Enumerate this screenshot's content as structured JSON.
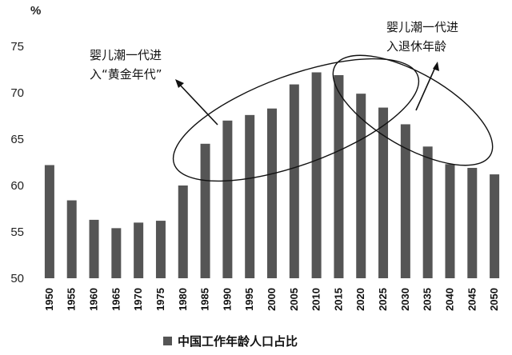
{
  "chart_data": {
    "type": "bar",
    "ylabel": "%",
    "ylim": [
      50,
      75
    ],
    "yticks": [
      50,
      55,
      60,
      65,
      70,
      75
    ],
    "grid": false,
    "categories": [
      "1950",
      "1955",
      "1960",
      "1965",
      "1970",
      "1975",
      "1980",
      "1985",
      "1990",
      "1995",
      "2000",
      "2005",
      "2010",
      "2015",
      "2020",
      "2025",
      "2030",
      "2035",
      "2040",
      "2045",
      "2050"
    ],
    "series": [
      {
        "name": "中国工作年龄人口占比",
        "color": "#555555",
        "values": [
          62.2,
          58.4,
          56.3,
          55.4,
          56.0,
          56.2,
          60.0,
          64.5,
          67.0,
          67.6,
          68.3,
          70.9,
          72.2,
          71.9,
          69.9,
          68.4,
          66.6,
          64.2,
          62.3,
          61.9,
          61.2
        ]
      }
    ],
    "legend": {
      "position": "bottom-center",
      "label": "中国工作年龄人口占比"
    },
    "annotations": [
      {
        "lines": [
          "婴儿潮一代进",
          "入“黄金年代”"
        ]
      },
      {
        "lines": [
          "婴儿潮一代进",
          "入退休年龄"
        ]
      }
    ]
  }
}
